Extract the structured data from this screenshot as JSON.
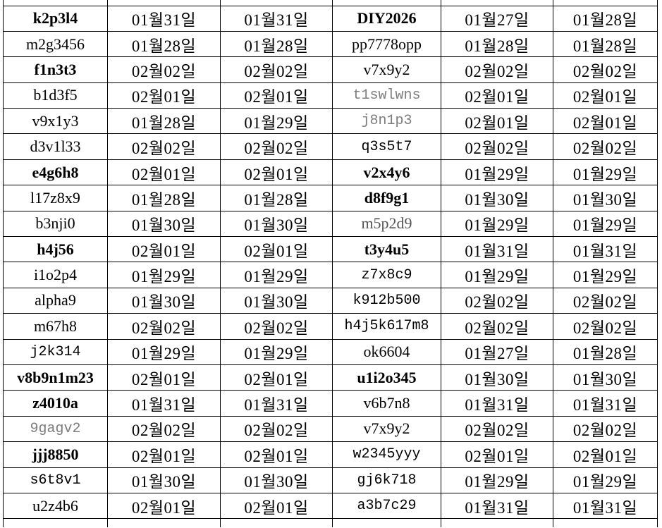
{
  "colors": {
    "background": "#ffffff",
    "border": "#000000",
    "text": "#000000",
    "muted_mono_text": "#7d7d7d",
    "muted_serif_text": "#555555"
  },
  "table": {
    "description": "Two ID+date groups per row; dates formatted as MM월DD일",
    "column_kinds": [
      "id",
      "date",
      "date",
      "id",
      "date",
      "date"
    ],
    "rows": [
      [
        {
          "t": "k2p3l4",
          "s": "serif-bold"
        },
        {
          "t": "01월31일",
          "s": "date"
        },
        {
          "t": "01월31일",
          "s": "date"
        },
        {
          "t": "DIY2026",
          "s": "serif-bold"
        },
        {
          "t": "01월27일",
          "s": "date"
        },
        {
          "t": "01월28일",
          "s": "date"
        }
      ],
      [
        {
          "t": "m2g3456",
          "s": "serif"
        },
        {
          "t": "01월28일",
          "s": "date"
        },
        {
          "t": "01월28일",
          "s": "date"
        },
        {
          "t": "pp7778opp",
          "s": "serif"
        },
        {
          "t": "01월28일",
          "s": "date"
        },
        {
          "t": "01월28일",
          "s": "date"
        }
      ],
      [
        {
          "t": "f1n3t3",
          "s": "serif-bold"
        },
        {
          "t": "02월02일",
          "s": "date"
        },
        {
          "t": "02월02일",
          "s": "date"
        },
        {
          "t": "v7x9y2",
          "s": "serif"
        },
        {
          "t": "02월02일",
          "s": "date"
        },
        {
          "t": "02월02일",
          "s": "date"
        }
      ],
      [
        {
          "t": "b1d3f5",
          "s": "serif"
        },
        {
          "t": "02월01일",
          "s": "date"
        },
        {
          "t": "02월01일",
          "s": "date"
        },
        {
          "t": "t1swlwns",
          "s": "mono-gray"
        },
        {
          "t": "02월01일",
          "s": "date"
        },
        {
          "t": "02월01일",
          "s": "date"
        }
      ],
      [
        {
          "t": "v9x1y3",
          "s": "serif"
        },
        {
          "t": "01월28일",
          "s": "date"
        },
        {
          "t": "01월29일",
          "s": "date"
        },
        {
          "t": "j8n1p3",
          "s": "mono-gray"
        },
        {
          "t": "02월01일",
          "s": "date"
        },
        {
          "t": "02월01일",
          "s": "date"
        }
      ],
      [
        {
          "t": "d3v1l33",
          "s": "serif"
        },
        {
          "t": "02월02일",
          "s": "date"
        },
        {
          "t": "02월02일",
          "s": "date"
        },
        {
          "t": "q3s5t7",
          "s": "mono"
        },
        {
          "t": "02월02일",
          "s": "date"
        },
        {
          "t": "02월02일",
          "s": "date"
        }
      ],
      [
        {
          "t": "e4g6h8",
          "s": "serif-bold"
        },
        {
          "t": "02월01일",
          "s": "date"
        },
        {
          "t": "02월01일",
          "s": "date"
        },
        {
          "t": "v2x4y6",
          "s": "serif-bold"
        },
        {
          "t": "01월29일",
          "s": "date"
        },
        {
          "t": "01월29일",
          "s": "date"
        }
      ],
      [
        {
          "t": "l17z8x9",
          "s": "serif"
        },
        {
          "t": "01월28일",
          "s": "date"
        },
        {
          "t": "01월28일",
          "s": "date"
        },
        {
          "t": "d8f9g1",
          "s": "serif-bold"
        },
        {
          "t": "01월30일",
          "s": "date"
        },
        {
          "t": "01월30일",
          "s": "date"
        }
      ],
      [
        {
          "t": "b3nji0",
          "s": "serif"
        },
        {
          "t": "01월30일",
          "s": "date"
        },
        {
          "t": "01월30일",
          "s": "date"
        },
        {
          "t": "m5p2d9",
          "s": "serif-gray"
        },
        {
          "t": "01월29일",
          "s": "date"
        },
        {
          "t": "01월29일",
          "s": "date"
        }
      ],
      [
        {
          "t": "h4j56",
          "s": "serif-bold"
        },
        {
          "t": "02월01일",
          "s": "date"
        },
        {
          "t": "02월01일",
          "s": "date"
        },
        {
          "t": "t3y4u5",
          "s": "serif-bold"
        },
        {
          "t": "01월31일",
          "s": "date"
        },
        {
          "t": "01월31일",
          "s": "date"
        }
      ],
      [
        {
          "t": "i1o2p4",
          "s": "serif"
        },
        {
          "t": "01월29일",
          "s": "date"
        },
        {
          "t": "01월29일",
          "s": "date"
        },
        {
          "t": "z7x8c9",
          "s": "mono"
        },
        {
          "t": "01월29일",
          "s": "date"
        },
        {
          "t": "01월29일",
          "s": "date"
        }
      ],
      [
        {
          "t": "alpha9",
          "s": "serif"
        },
        {
          "t": "01월30일",
          "s": "date"
        },
        {
          "t": "01월30일",
          "s": "date"
        },
        {
          "t": "k912b500",
          "s": "mono"
        },
        {
          "t": "02월02일",
          "s": "date"
        },
        {
          "t": "02월02일",
          "s": "date"
        }
      ],
      [
        {
          "t": "m67h8",
          "s": "serif"
        },
        {
          "t": "02월02일",
          "s": "date"
        },
        {
          "t": "02월02일",
          "s": "date"
        },
        {
          "t": "h4j5k617m8",
          "s": "mono"
        },
        {
          "t": "02월02일",
          "s": "date"
        },
        {
          "t": "02월02일",
          "s": "date"
        }
      ],
      [
        {
          "t": "j2k314",
          "s": "mono"
        },
        {
          "t": "01월29일",
          "s": "date"
        },
        {
          "t": "01월29일",
          "s": "date"
        },
        {
          "t": "ok6604",
          "s": "serif"
        },
        {
          "t": "01월27일",
          "s": "date"
        },
        {
          "t": "01월28일",
          "s": "date"
        }
      ],
      [
        {
          "t": "v8b9n1m23",
          "s": "serif-bold"
        },
        {
          "t": "02월01일",
          "s": "date"
        },
        {
          "t": "02월01일",
          "s": "date"
        },
        {
          "t": "u1i2o345",
          "s": "serif-bold"
        },
        {
          "t": "01월30일",
          "s": "date"
        },
        {
          "t": "01월30일",
          "s": "date"
        }
      ],
      [
        {
          "t": "z4010a",
          "s": "serif-bold"
        },
        {
          "t": "01월31일",
          "s": "date"
        },
        {
          "t": "01월31일",
          "s": "date"
        },
        {
          "t": "v6b7n8",
          "s": "serif"
        },
        {
          "t": "01월31일",
          "s": "date"
        },
        {
          "t": "01월31일",
          "s": "date"
        }
      ],
      [
        {
          "t": "9gagv2",
          "s": "mono-gray"
        },
        {
          "t": "02월02일",
          "s": "date"
        },
        {
          "t": "02월02일",
          "s": "date"
        },
        {
          "t": "v7x9y2",
          "s": "serif"
        },
        {
          "t": "02월02일",
          "s": "date"
        },
        {
          "t": "02월02일",
          "s": "date"
        }
      ],
      [
        {
          "t": "jjj8850",
          "s": "serif-bold"
        },
        {
          "t": "02월01일",
          "s": "date"
        },
        {
          "t": "02월01일",
          "s": "date"
        },
        {
          "t": "w2345yyy",
          "s": "mono"
        },
        {
          "t": "02월01일",
          "s": "date"
        },
        {
          "t": "02월01일",
          "s": "date"
        }
      ],
      [
        {
          "t": "s6t8v1",
          "s": "mono"
        },
        {
          "t": "01월30일",
          "s": "date"
        },
        {
          "t": "01월30일",
          "s": "date"
        },
        {
          "t": "gj6k718",
          "s": "mono"
        },
        {
          "t": "01월29일",
          "s": "date"
        },
        {
          "t": "01월29일",
          "s": "date"
        }
      ],
      [
        {
          "t": "u2z4b6",
          "s": "serif"
        },
        {
          "t": "02월01일",
          "s": "date"
        },
        {
          "t": "02월01일",
          "s": "date"
        },
        {
          "t": "a3b7c29",
          "s": "mono"
        },
        {
          "t": "01월31일",
          "s": "date"
        },
        {
          "t": "01월31일",
          "s": "date"
        }
      ]
    ]
  }
}
